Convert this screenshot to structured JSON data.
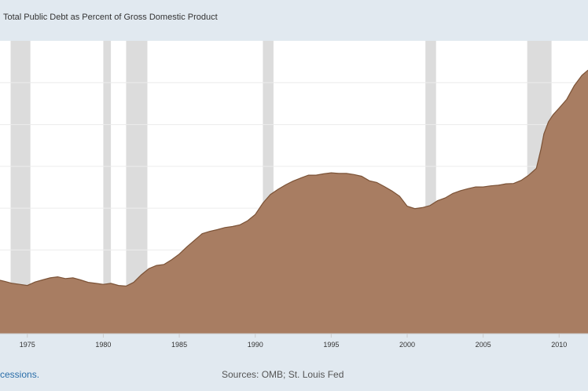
{
  "chart_data": {
    "type": "area",
    "title": "Total Public Debt as Percent of Gross Domestic Product",
    "xlabel": "",
    "ylabel": "",
    "x_ticks": [
      "1975",
      "1980",
      "1985",
      "1990",
      "1995",
      "2000",
      "2005",
      "2010"
    ],
    "xlim": [
      1973.2,
      2011.9
    ],
    "ylim": [
      20,
      105
    ],
    "grid": true,
    "colors": {
      "fill": "#a87d62",
      "line": "#7b5236",
      "recession": "#dcdcdc",
      "plot_bg": "#ffffff",
      "grid": "#ececec"
    },
    "recessions": [
      [
        1973.9,
        1975.2
      ],
      [
        1980.0,
        1980.5
      ],
      [
        1981.5,
        1982.9
      ],
      [
        1990.5,
        1991.2
      ],
      [
        2001.2,
        2001.9
      ],
      [
        2007.9,
        2009.5
      ]
    ],
    "series": [
      {
        "x": [
          1973.2,
          1973.5,
          1974.0,
          1974.5,
          1975.0,
          1975.5,
          1976.0,
          1976.5,
          1977.0,
          1977.5,
          1978.0,
          1978.5,
          1979.0,
          1979.5,
          1980.0,
          1980.5,
          1981.0,
          1981.5,
          1982.0,
          1982.5,
          1983.0,
          1983.5,
          1984.0,
          1984.5,
          1985.0,
          1985.5,
          1986.0,
          1986.5,
          1987.0,
          1987.5,
          1988.0,
          1988.5,
          1989.0,
          1989.5,
          1990.0,
          1990.5,
          1991.0,
          1991.5,
          1992.0,
          1992.5,
          1993.0,
          1993.5,
          1994.0,
          1994.5,
          1995.0,
          1995.5,
          1996.0,
          1996.5,
          1997.0,
          1997.5,
          1998.0,
          1998.5,
          1999.0,
          1999.5,
          2000.0,
          2000.5,
          2001.0,
          2001.5,
          2002.0,
          2002.5,
          2003.0,
          2003.5,
          2004.0,
          2004.5,
          2005.0,
          2005.5,
          2006.0,
          2006.5,
          2007.0,
          2007.5,
          2008.0,
          2008.5,
          2008.8,
          2009.0,
          2009.3,
          2009.6,
          2010.0,
          2010.5,
          2011.0,
          2011.5,
          2011.9
        ],
        "values": [
          35.5,
          35.2,
          34.6,
          34.3,
          34.0,
          35.0,
          35.6,
          36.2,
          36.5,
          36.0,
          36.2,
          35.6,
          34.9,
          34.6,
          34.3,
          34.6,
          34.0,
          33.8,
          34.9,
          37.1,
          38.9,
          39.8,
          40.1,
          41.5,
          43.1,
          45.2,
          47.1,
          49.0,
          49.7,
          50.2,
          50.8,
          51.1,
          51.6,
          52.8,
          54.6,
          57.9,
          60.4,
          61.9,
          63.2,
          64.3,
          65.2,
          66.0,
          66.0,
          66.4,
          66.7,
          66.5,
          66.5,
          66.2,
          65.7,
          64.4,
          63.9,
          62.7,
          61.4,
          59.9,
          57.0,
          56.3,
          56.6,
          57.2,
          58.6,
          59.4,
          60.7,
          61.5,
          62.1,
          62.6,
          62.6,
          62.9,
          63.1,
          63.5,
          63.6,
          64.5,
          66.0,
          68.0,
          73.5,
          78.0,
          81.5,
          83.5,
          85.5,
          88.0,
          92.0,
          95.0,
          96.5
        ]
      }
    ]
  },
  "footer": {
    "left_text": "cessions.",
    "sources": "Sources: OMB; St. Louis Fed"
  }
}
